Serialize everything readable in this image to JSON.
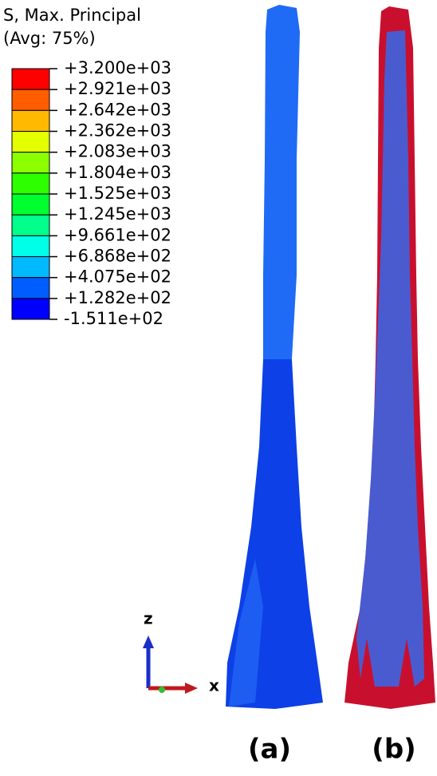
{
  "legend": {
    "title": "S, Max. Principal",
    "subtitle": "(Avg: 75%)",
    "labels": [
      "+3.200e+03",
      "+2.921e+03",
      "+2.642e+03",
      "+2.362e+03",
      "+2.083e+03",
      "+1.804e+03",
      "+1.525e+03",
      "+1.245e+03",
      "+9.661e+02",
      "+6.868e+02",
      "+4.075e+02",
      "+1.282e+02",
      "-1.511e+02"
    ],
    "colors": [
      "#ff0000",
      "#ff5d00",
      "#ffb900",
      "#e3ff00",
      "#8cff00",
      "#2eff00",
      "#00ff2e",
      "#00ff8b",
      "#00ffe8",
      "#00b9ff",
      "#005dff",
      "#0000ff"
    ]
  },
  "triad": {
    "z": "z",
    "x": "x"
  },
  "panels": [
    "(a)",
    "(b)"
  ]
}
